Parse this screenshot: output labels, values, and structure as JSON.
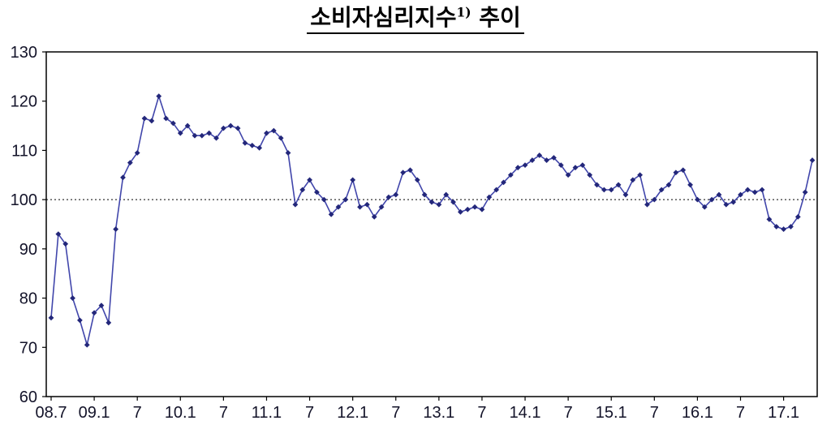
{
  "page": {
    "title_main": "소비자심리지수",
    "title_superscript": "1)",
    "title_suffix": " 추이"
  },
  "chart_data": {
    "type": "line",
    "title": "소비자심리지수1) 추이",
    "x_start": "2008.07",
    "x_frequency": "monthly",
    "x_tick_labels": [
      "08.7",
      "09.1",
      "7",
      "10.1",
      "7",
      "11.1",
      "7",
      "12.1",
      "7",
      "13.1",
      "7",
      "14.1",
      "7",
      "15.1",
      "7",
      "16.1",
      "7",
      "17.1"
    ],
    "x_tick_month_indices": [
      0,
      6,
      12,
      18,
      24,
      30,
      36,
      42,
      48,
      54,
      60,
      66,
      72,
      78,
      84,
      90,
      96,
      102
    ],
    "ylim": [
      60,
      130
    ],
    "ytick_step": 10,
    "ytick_labels": [
      "130",
      "120",
      "110",
      "100",
      "90",
      "80",
      "70",
      "60"
    ],
    "reference_line": 100,
    "grid": "off",
    "legend": "none",
    "series": [
      {
        "name": "소비자심리지수",
        "values": [
          76,
          93,
          91,
          80,
          75.5,
          70.5,
          77,
          78.5,
          75,
          94,
          104.5,
          107.5,
          109.5,
          116.5,
          116,
          121,
          116.5,
          115.5,
          113.5,
          115,
          113,
          113,
          113.5,
          112.5,
          114.5,
          115,
          114.5,
          111.5,
          111,
          110.5,
          113.5,
          114,
          112.5,
          109.5,
          99,
          102,
          104,
          101.5,
          100,
          97,
          98.5,
          100,
          104,
          98.5,
          99,
          96.5,
          98.5,
          100.5,
          101,
          105.5,
          106,
          104,
          101,
          99.5,
          99,
          101,
          99.5,
          97.5,
          98,
          98.5,
          98,
          100.5,
          102,
          103.5,
          105,
          106.5,
          107,
          108,
          109,
          108,
          108.5,
          107,
          105,
          106.5,
          107,
          105,
          103,
          102,
          102,
          103,
          101,
          104,
          105,
          99,
          100,
          102,
          103,
          105.5,
          106,
          103,
          100,
          98.5,
          100,
          101,
          99,
          99.5,
          101,
          102,
          101.5,
          102,
          96,
          94.5,
          94,
          94.5,
          96.5,
          101.5,
          108
        ]
      }
    ],
    "colors": {
      "line": "#4146ab",
      "marker": "#23277a",
      "frame": "#000000",
      "axis_text": "#14142a",
      "reference_line": "#000000"
    }
  }
}
